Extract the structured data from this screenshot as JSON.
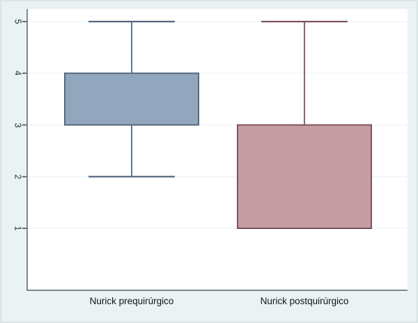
{
  "figure": {
    "background_color": "#eaf2f3",
    "plot_background_color": "#ffffff",
    "border_color": "#dbe5e7",
    "axis_color": "#7e898e",
    "tick_color": "#545f64",
    "grid_color": "#eef3f6",
    "y_tick_label_color": "#1f2e36",
    "x_label_color": "#141414"
  },
  "chart_data": {
    "type": "box",
    "title": "",
    "xlabel": "",
    "ylabel": "",
    "categories": [
      "Nurick prequirúrgico",
      "Nurick postquirúrgico"
    ],
    "y_ticks": [
      1,
      2,
      3,
      4,
      5
    ],
    "ylim": [
      -0.25,
      5.25
    ],
    "grid": true,
    "legend": "none",
    "series": [
      {
        "label": "Nurick prequirúrgico",
        "q1": 3,
        "q3": 4,
        "whisker_low": 2,
        "whisker_high": 5,
        "fill": "#92a7bd",
        "stroke": "#54687e"
      },
      {
        "label": "Nurick postquirúrgico",
        "q1": 1,
        "q3": 3,
        "whisker_low": 1,
        "whisker_high": 5,
        "fill": "#c59da3",
        "stroke": "#7d535c"
      }
    ]
  }
}
